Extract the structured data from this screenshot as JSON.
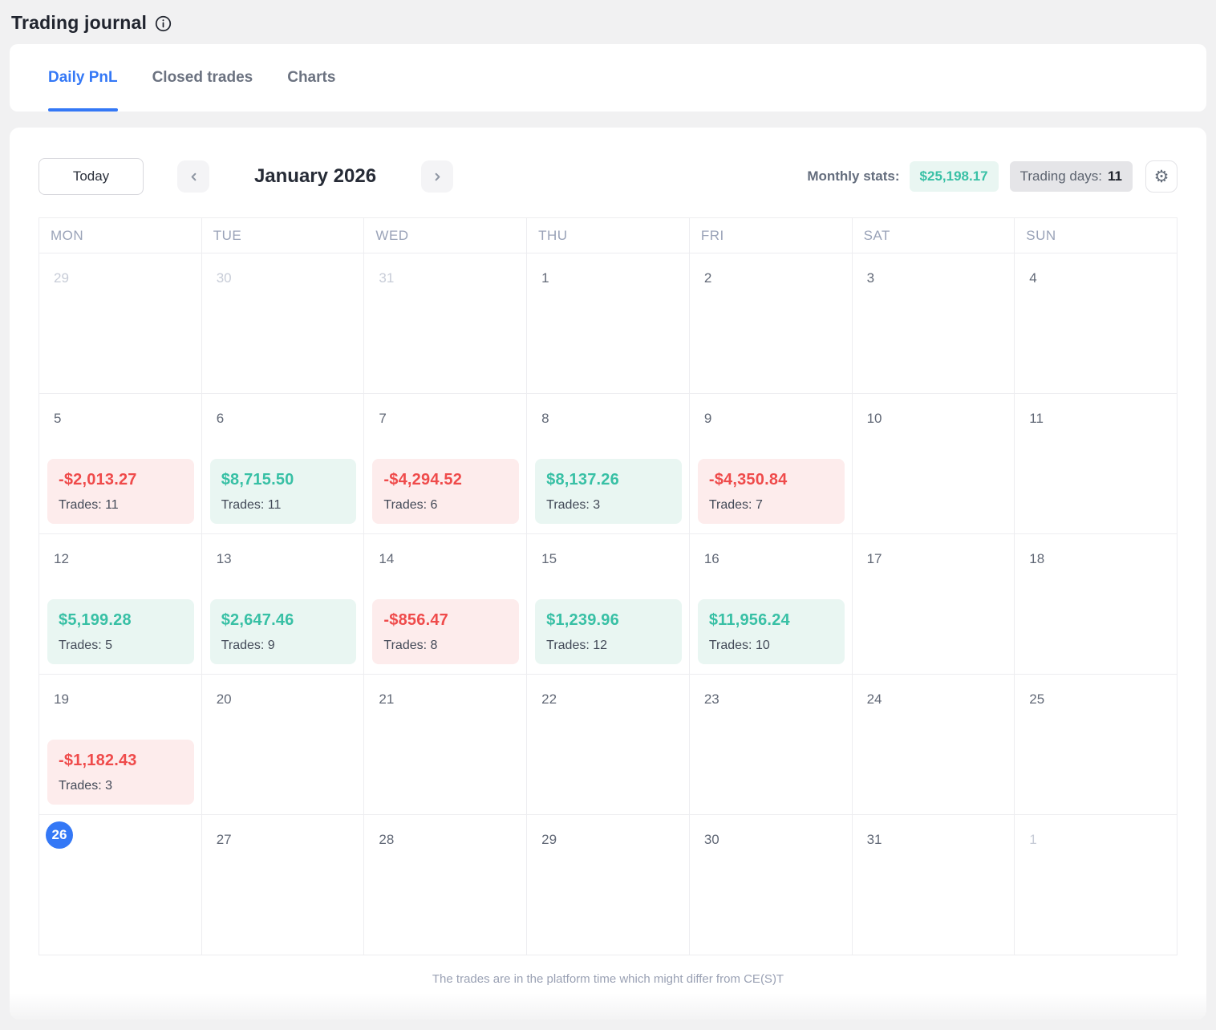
{
  "page": {
    "title": "Trading journal",
    "footer_note": "The trades are in the platform time which might differ from CE(S)T"
  },
  "tabs": [
    {
      "label": "Daily PnL",
      "active": true
    },
    {
      "label": "Closed trades",
      "active": false
    },
    {
      "label": "Charts",
      "active": false
    }
  ],
  "toolbar": {
    "today_label": "Today",
    "month_title": "January 2026",
    "monthly_stats_label": "Monthly stats:",
    "monthly_pnl": "$25,198.17",
    "trading_days_label": "Trading days:",
    "trading_days_value": "11"
  },
  "icons": {
    "info": "info-icon",
    "prev": "chevron-left-icon",
    "next": "chevron-right-icon",
    "settings": "gear-icon",
    "gear_glyph": "⚙"
  },
  "colors": {
    "accent": "#3478f6",
    "gain": "#38c0a5",
    "gain_bg": "#e9f6f2",
    "loss": "#ef4b4b",
    "loss_bg": "#fdecec",
    "page_bg": "#f1f1f2"
  },
  "calendar": {
    "day_headers": [
      "MON",
      "TUE",
      "WED",
      "THU",
      "FRI",
      "SAT",
      "SUN"
    ],
    "weeks": [
      [
        {
          "day": "29",
          "muted": true
        },
        {
          "day": "30",
          "muted": true
        },
        {
          "day": "31",
          "muted": true
        },
        {
          "day": "1"
        },
        {
          "day": "2"
        },
        {
          "day": "3"
        },
        {
          "day": "4"
        }
      ],
      [
        {
          "day": "5",
          "pnl": "-$2,013.27",
          "trades": "Trades: 11",
          "result": "loss"
        },
        {
          "day": "6",
          "pnl": "$8,715.50",
          "trades": "Trades: 11",
          "result": "gain"
        },
        {
          "day": "7",
          "pnl": "-$4,294.52",
          "trades": "Trades: 6",
          "result": "loss"
        },
        {
          "day": "8",
          "pnl": "$8,137.26",
          "trades": "Trades: 3",
          "result": "gain"
        },
        {
          "day": "9",
          "pnl": "-$4,350.84",
          "trades": "Trades: 7",
          "result": "loss"
        },
        {
          "day": "10"
        },
        {
          "day": "11"
        }
      ],
      [
        {
          "day": "12",
          "pnl": "$5,199.28",
          "trades": "Trades: 5",
          "result": "gain"
        },
        {
          "day": "13",
          "pnl": "$2,647.46",
          "trades": "Trades: 9",
          "result": "gain"
        },
        {
          "day": "14",
          "pnl": "-$856.47",
          "trades": "Trades: 8",
          "result": "loss"
        },
        {
          "day": "15",
          "pnl": "$1,239.96",
          "trades": "Trades: 12",
          "result": "gain"
        },
        {
          "day": "16",
          "pnl": "$11,956.24",
          "trades": "Trades: 10",
          "result": "gain"
        },
        {
          "day": "17"
        },
        {
          "day": "18"
        }
      ],
      [
        {
          "day": "19",
          "pnl": "-$1,182.43",
          "trades": "Trades: 3",
          "result": "loss"
        },
        {
          "day": "20"
        },
        {
          "day": "21"
        },
        {
          "day": "22"
        },
        {
          "day": "23"
        },
        {
          "day": "24"
        },
        {
          "day": "25"
        }
      ],
      [
        {
          "day": "26",
          "today": true
        },
        {
          "day": "27"
        },
        {
          "day": "28"
        },
        {
          "day": "29"
        },
        {
          "day": "30"
        },
        {
          "day": "31"
        },
        {
          "day": "1",
          "muted": true
        }
      ]
    ]
  }
}
